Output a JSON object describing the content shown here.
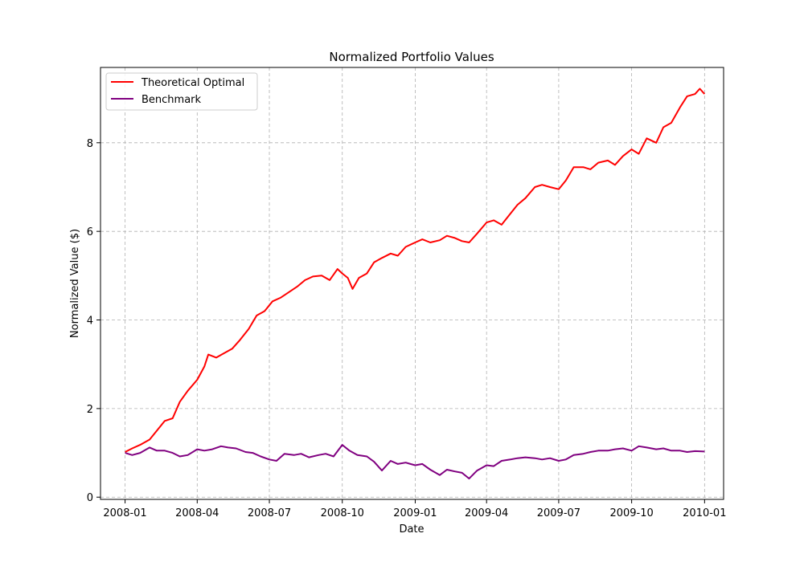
{
  "chart_data": {
    "type": "line",
    "title": "Normalized Portfolio Values",
    "xlabel": "Date",
    "ylabel": "Normalized Value ($)",
    "xlim": [
      "2007-12-01",
      "2010-01-25"
    ],
    "ylim": [
      -0.05,
      9.7
    ],
    "x_ticks": [
      "2008-01",
      "2008-04",
      "2008-07",
      "2008-10",
      "2009-01",
      "2009-04",
      "2009-07",
      "2009-10",
      "2010-01"
    ],
    "y_ticks": [
      0,
      2,
      4,
      6,
      8
    ],
    "grid": true,
    "legend_position": "top-left",
    "series": [
      {
        "name": "Theoretical Optimal",
        "color": "#ff0000",
        "points": [
          [
            "2008-01-01",
            1.02
          ],
          [
            "2008-01-10",
            1.1
          ],
          [
            "2008-01-20",
            1.18
          ],
          [
            "2008-02-01",
            1.3
          ],
          [
            "2008-02-10",
            1.5
          ],
          [
            "2008-02-20",
            1.72
          ],
          [
            "2008-03-01",
            1.78
          ],
          [
            "2008-03-10",
            2.15
          ],
          [
            "2008-03-20",
            2.4
          ],
          [
            "2008-04-01",
            2.65
          ],
          [
            "2008-04-10",
            2.95
          ],
          [
            "2008-04-15",
            3.22
          ],
          [
            "2008-04-25",
            3.15
          ],
          [
            "2008-05-05",
            3.25
          ],
          [
            "2008-05-15",
            3.35
          ],
          [
            "2008-05-25",
            3.55
          ],
          [
            "2008-06-05",
            3.8
          ],
          [
            "2008-06-15",
            4.1
          ],
          [
            "2008-06-25",
            4.2
          ],
          [
            "2008-07-05",
            4.42
          ],
          [
            "2008-07-15",
            4.5
          ],
          [
            "2008-07-25",
            4.62
          ],
          [
            "2008-08-05",
            4.75
          ],
          [
            "2008-08-15",
            4.9
          ],
          [
            "2008-08-25",
            4.98
          ],
          [
            "2008-09-05",
            5.0
          ],
          [
            "2008-09-15",
            4.9
          ],
          [
            "2008-09-25",
            5.15
          ],
          [
            "2008-10-01",
            5.05
          ],
          [
            "2008-10-08",
            4.95
          ],
          [
            "2008-10-14",
            4.7
          ],
          [
            "2008-10-22",
            4.95
          ],
          [
            "2008-11-01",
            5.05
          ],
          [
            "2008-11-10",
            5.3
          ],
          [
            "2008-11-20",
            5.4
          ],
          [
            "2008-12-01",
            5.5
          ],
          [
            "2008-12-10",
            5.45
          ],
          [
            "2008-12-20",
            5.65
          ],
          [
            "2009-01-01",
            5.75
          ],
          [
            "2009-01-10",
            5.82
          ],
          [
            "2009-01-20",
            5.75
          ],
          [
            "2009-02-01",
            5.8
          ],
          [
            "2009-02-10",
            5.9
          ],
          [
            "2009-02-20",
            5.85
          ],
          [
            "2009-03-01",
            5.78
          ],
          [
            "2009-03-10",
            5.75
          ],
          [
            "2009-03-20",
            5.95
          ],
          [
            "2009-04-01",
            6.2
          ],
          [
            "2009-04-10",
            6.25
          ],
          [
            "2009-04-20",
            6.15
          ],
          [
            "2009-05-01",
            6.4
          ],
          [
            "2009-05-10",
            6.6
          ],
          [
            "2009-05-20",
            6.75
          ],
          [
            "2009-06-01",
            7.0
          ],
          [
            "2009-06-10",
            7.05
          ],
          [
            "2009-06-20",
            7.0
          ],
          [
            "2009-07-01",
            6.95
          ],
          [
            "2009-07-10",
            7.15
          ],
          [
            "2009-07-20",
            7.45
          ],
          [
            "2009-08-01",
            7.45
          ],
          [
            "2009-08-10",
            7.4
          ],
          [
            "2009-08-20",
            7.55
          ],
          [
            "2009-09-01",
            7.6
          ],
          [
            "2009-09-10",
            7.5
          ],
          [
            "2009-09-20",
            7.7
          ],
          [
            "2009-10-01",
            7.85
          ],
          [
            "2009-10-10",
            7.75
          ],
          [
            "2009-10-20",
            8.1
          ],
          [
            "2009-11-01",
            8.0
          ],
          [
            "2009-11-10",
            8.35
          ],
          [
            "2009-11-20",
            8.45
          ],
          [
            "2009-12-01",
            8.8
          ],
          [
            "2009-12-10",
            9.05
          ],
          [
            "2009-12-20",
            9.1
          ],
          [
            "2009-12-26",
            9.22
          ],
          [
            "2010-01-01",
            9.1
          ]
        ]
      },
      {
        "name": "Benchmark",
        "color": "#800080",
        "points": [
          [
            "2008-01-01",
            1.0
          ],
          [
            "2008-01-10",
            0.95
          ],
          [
            "2008-01-20",
            1.0
          ],
          [
            "2008-02-01",
            1.12
          ],
          [
            "2008-02-10",
            1.05
          ],
          [
            "2008-02-20",
            1.05
          ],
          [
            "2008-03-01",
            1.0
          ],
          [
            "2008-03-10",
            0.92
          ],
          [
            "2008-03-20",
            0.95
          ],
          [
            "2008-04-01",
            1.08
          ],
          [
            "2008-04-10",
            1.05
          ],
          [
            "2008-04-20",
            1.08
          ],
          [
            "2008-05-01",
            1.15
          ],
          [
            "2008-05-10",
            1.12
          ],
          [
            "2008-05-20",
            1.1
          ],
          [
            "2008-06-01",
            1.02
          ],
          [
            "2008-06-10",
            1.0
          ],
          [
            "2008-06-20",
            0.92
          ],
          [
            "2008-07-01",
            0.85
          ],
          [
            "2008-07-10",
            0.82
          ],
          [
            "2008-07-20",
            0.98
          ],
          [
            "2008-08-01",
            0.95
          ],
          [
            "2008-08-10",
            0.98
          ],
          [
            "2008-08-20",
            0.9
          ],
          [
            "2008-09-01",
            0.95
          ],
          [
            "2008-09-10",
            0.98
          ],
          [
            "2008-09-20",
            0.92
          ],
          [
            "2008-10-01",
            1.18
          ],
          [
            "2008-10-10",
            1.05
          ],
          [
            "2008-10-20",
            0.95
          ],
          [
            "2008-11-01",
            0.92
          ],
          [
            "2008-11-10",
            0.8
          ],
          [
            "2008-11-20",
            0.6
          ],
          [
            "2008-12-01",
            0.82
          ],
          [
            "2008-12-10",
            0.75
          ],
          [
            "2008-12-20",
            0.78
          ],
          [
            "2009-01-01",
            0.72
          ],
          [
            "2009-01-10",
            0.75
          ],
          [
            "2009-01-20",
            0.62
          ],
          [
            "2009-02-01",
            0.5
          ],
          [
            "2009-02-10",
            0.62
          ],
          [
            "2009-02-20",
            0.58
          ],
          [
            "2009-03-01",
            0.55
          ],
          [
            "2009-03-10",
            0.42
          ],
          [
            "2009-03-20",
            0.6
          ],
          [
            "2009-04-01",
            0.72
          ],
          [
            "2009-04-10",
            0.7
          ],
          [
            "2009-04-20",
            0.82
          ],
          [
            "2009-05-01",
            0.85
          ],
          [
            "2009-05-10",
            0.88
          ],
          [
            "2009-05-20",
            0.9
          ],
          [
            "2009-06-01",
            0.88
          ],
          [
            "2009-06-10",
            0.85
          ],
          [
            "2009-06-20",
            0.88
          ],
          [
            "2009-07-01",
            0.82
          ],
          [
            "2009-07-10",
            0.85
          ],
          [
            "2009-07-20",
            0.95
          ],
          [
            "2009-08-01",
            0.98
          ],
          [
            "2009-08-10",
            1.02
          ],
          [
            "2009-08-20",
            1.05
          ],
          [
            "2009-09-01",
            1.05
          ],
          [
            "2009-09-10",
            1.08
          ],
          [
            "2009-09-20",
            1.1
          ],
          [
            "2009-10-01",
            1.05
          ],
          [
            "2009-10-10",
            1.15
          ],
          [
            "2009-10-20",
            1.12
          ],
          [
            "2009-11-01",
            1.08
          ],
          [
            "2009-11-10",
            1.1
          ],
          [
            "2009-11-20",
            1.05
          ],
          [
            "2009-12-01",
            1.05
          ],
          [
            "2009-12-10",
            1.02
          ],
          [
            "2009-12-20",
            1.04
          ],
          [
            "2010-01-01",
            1.03
          ]
        ]
      }
    ]
  }
}
